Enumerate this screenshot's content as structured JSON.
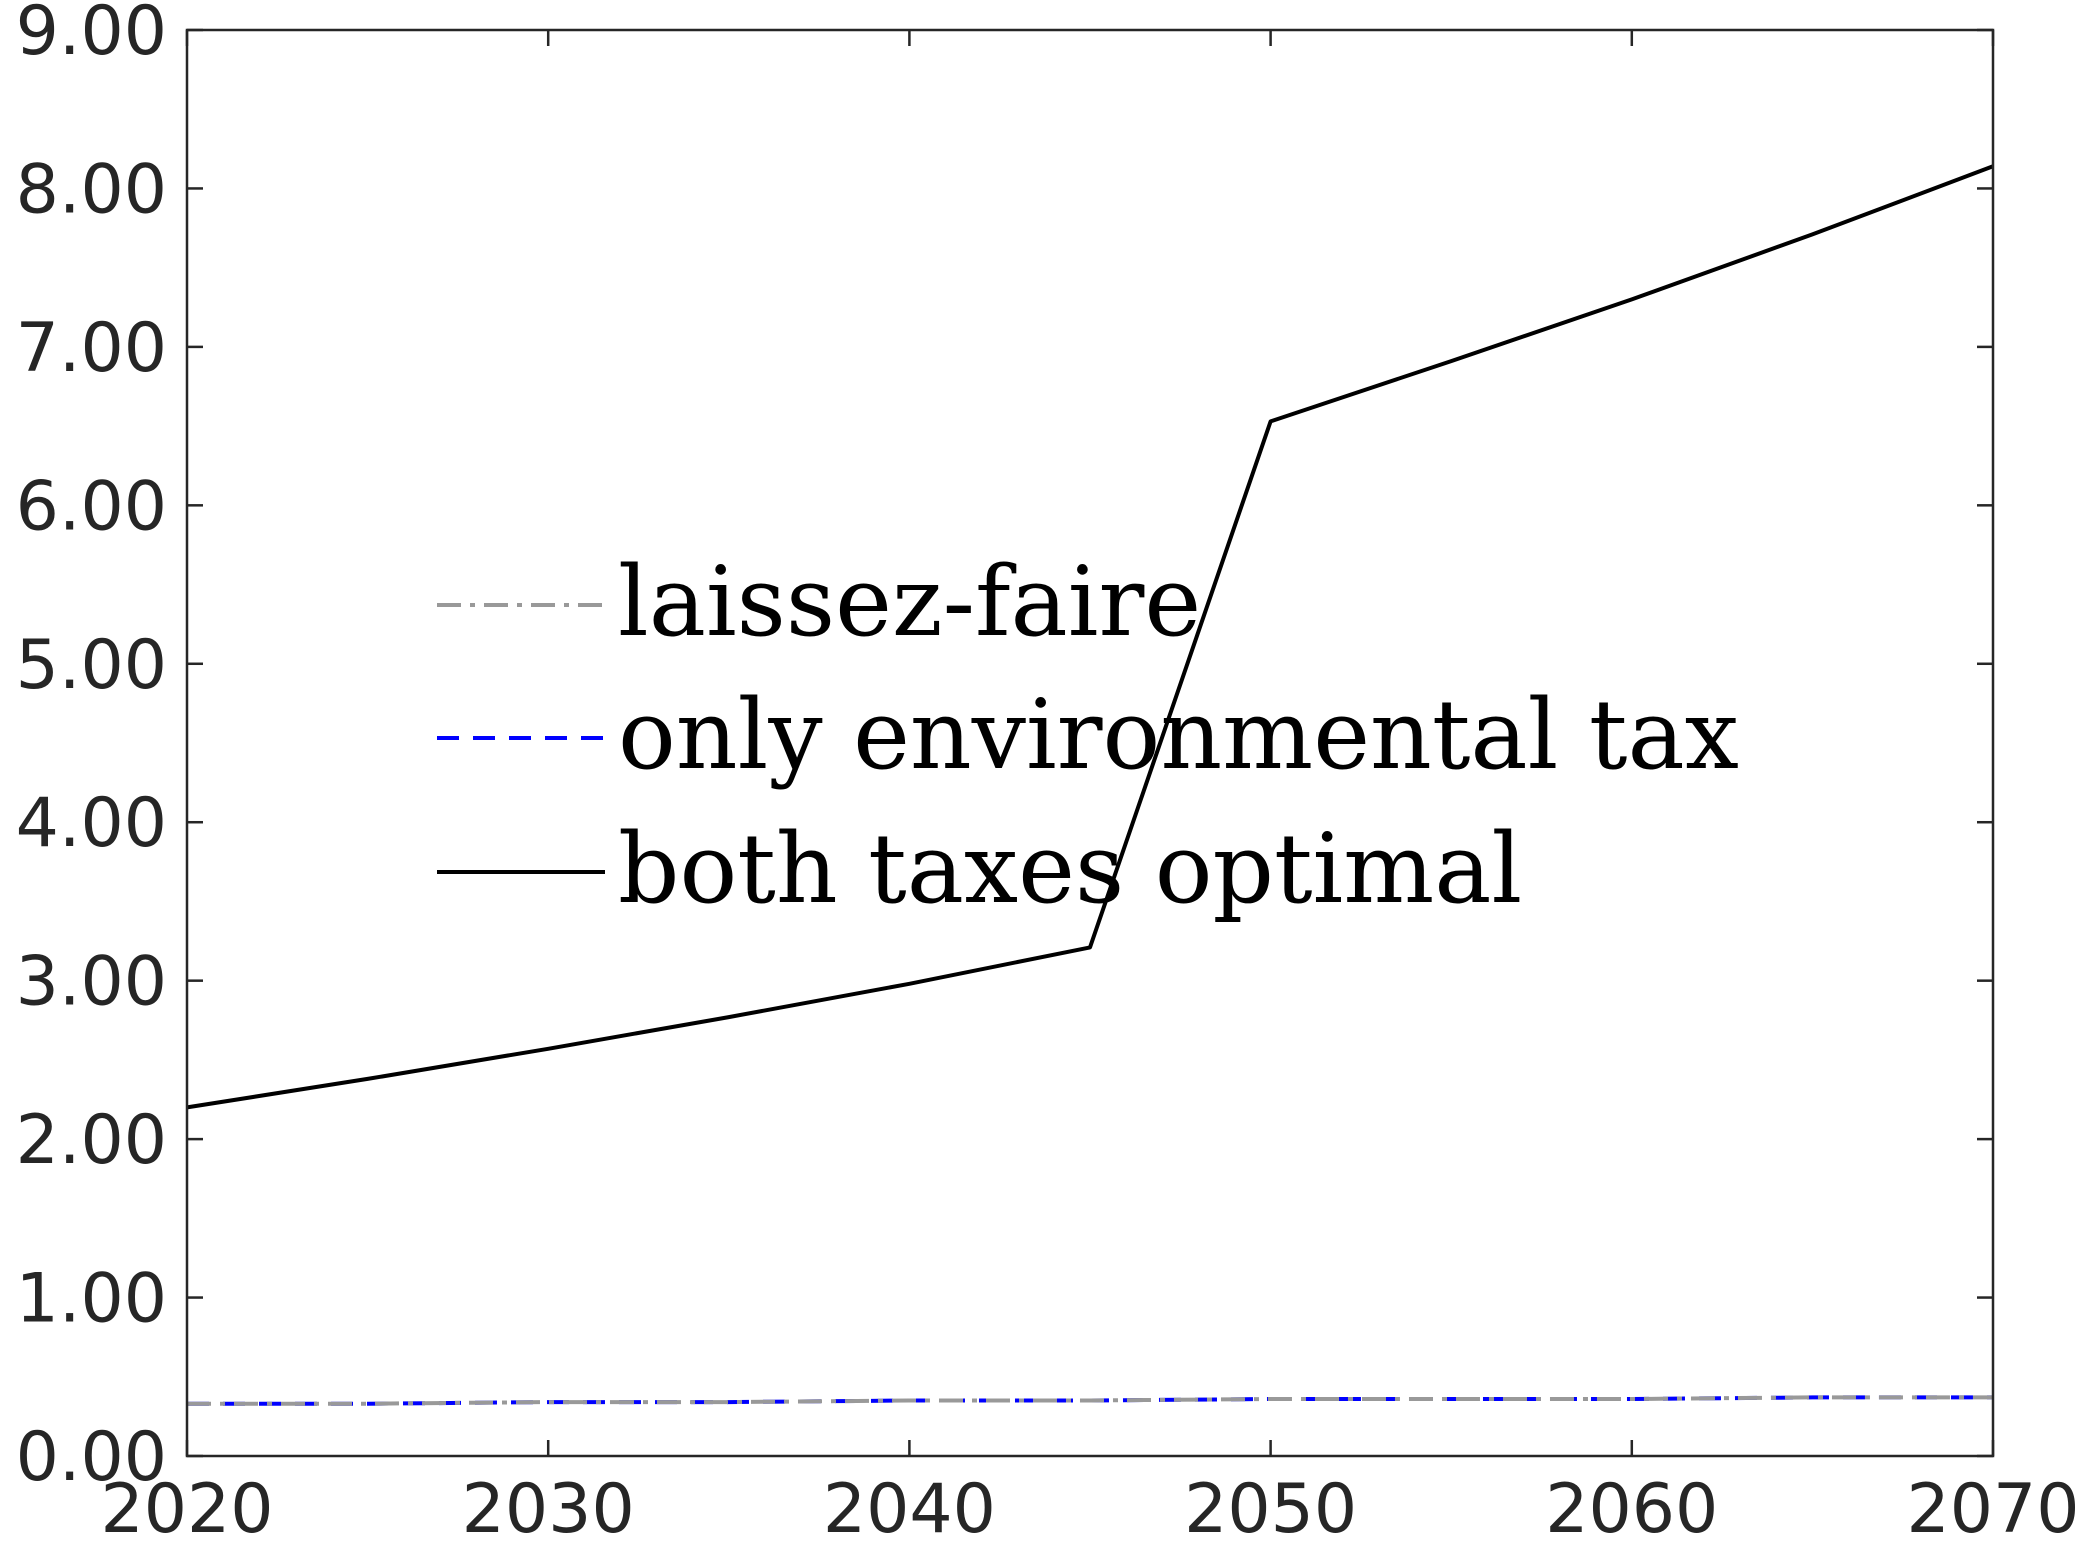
{
  "chart_data": {
    "type": "line",
    "title": "",
    "xlabel": "",
    "ylabel": "",
    "xlim": [
      2020,
      2070
    ],
    "ylim": [
      0,
      9
    ],
    "x_ticks": [
      "2020",
      "2030",
      "2040",
      "2050",
      "2060",
      "2070"
    ],
    "y_ticks": [
      "0.00",
      "1.00",
      "2.00",
      "3.00",
      "4.00",
      "5.00",
      "6.00",
      "7.00",
      "8.00",
      "9.00"
    ],
    "grid": false,
    "legend_position": "center-left",
    "series": [
      {
        "name": "laissez-faire",
        "color": "#999999",
        "style": "dash-dot",
        "x": [
          2020,
          2025,
          2030,
          2035,
          2040,
          2045,
          2050,
          2055,
          2060,
          2065,
          2070
        ],
        "y": [
          0.33,
          0.33,
          0.34,
          0.34,
          0.35,
          0.35,
          0.36,
          0.36,
          0.36,
          0.37,
          0.37
        ]
      },
      {
        "name": "only environmental tax",
        "color": "#0000ff",
        "style": "dashed",
        "x": [
          2020,
          2025,
          2030,
          2035,
          2040,
          2045,
          2050,
          2055,
          2060,
          2065,
          2070
        ],
        "y": [
          0.33,
          0.33,
          0.34,
          0.34,
          0.35,
          0.35,
          0.36,
          0.36,
          0.36,
          0.37,
          0.37
        ]
      },
      {
        "name": "both taxes optimal",
        "color": "#000000",
        "style": "solid",
        "x": [
          2020,
          2025,
          2030,
          2035,
          2040,
          2045,
          2050,
          2055,
          2060,
          2065,
          2070
        ],
        "y": [
          2.2,
          2.38,
          2.57,
          2.77,
          2.98,
          3.21,
          6.53,
          6.91,
          7.3,
          7.71,
          8.14
        ]
      }
    ]
  }
}
